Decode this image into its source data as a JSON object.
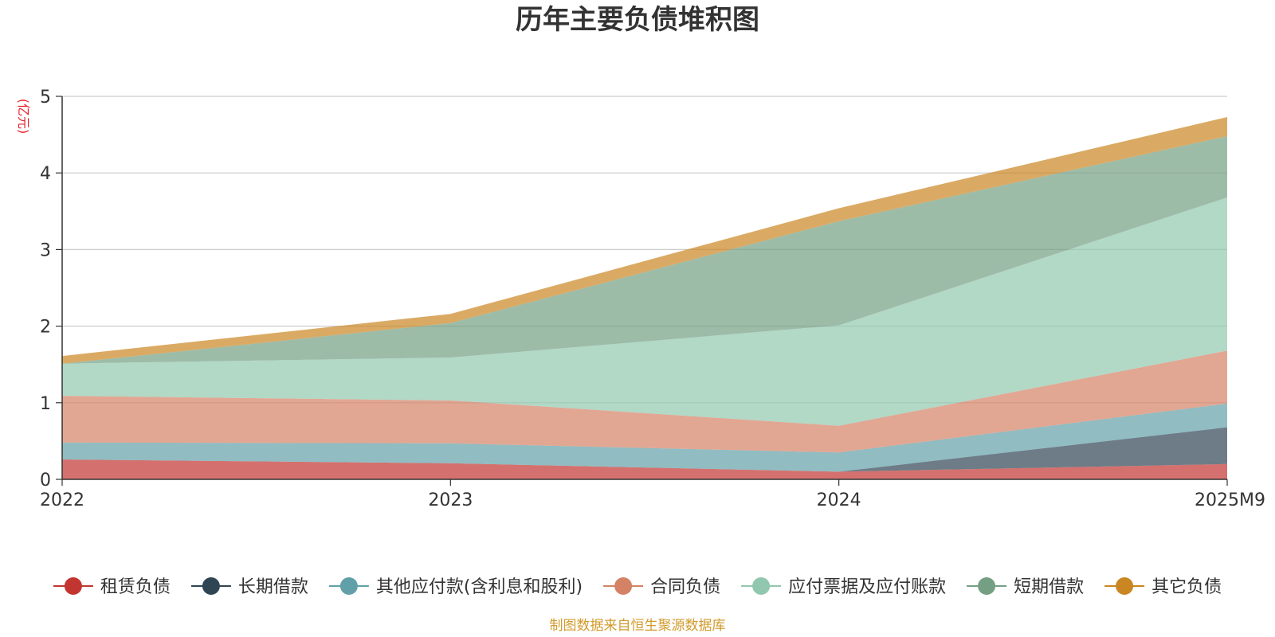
{
  "chart_data": {
    "type": "area",
    "stacked": true,
    "title": "历年主要负债堆积图",
    "unit_label": "(亿元)",
    "x": [
      "2022",
      "2023",
      "2024",
      "2025M9"
    ],
    "ylim": [
      0,
      5
    ],
    "yticks": [
      "0",
      "1",
      "2",
      "3",
      "4",
      "5"
    ],
    "grid": true,
    "legend_position": "bottom",
    "source": "制图数据来自恒生聚源数据库",
    "series": [
      {
        "name": "租赁负债",
        "values": [
          0.26,
          0.21,
          0.1,
          0.2
        ],
        "color": "#c23531"
      },
      {
        "name": "长期借款",
        "values": [
          0.0,
          0.0,
          0.0,
          0.48
        ],
        "color": "#2f4554"
      },
      {
        "name": "其他应付款(含利息和股利)",
        "values": [
          0.22,
          0.26,
          0.25,
          0.31
        ],
        "color": "#61a0a8"
      },
      {
        "name": "合同负债",
        "values": [
          0.61,
          0.56,
          0.35,
          0.69
        ],
        "color": "#d48265"
      },
      {
        "name": "应付票据及应付账款",
        "values": [
          0.42,
          0.56,
          1.31,
          2.0
        ],
        "color": "#91c7ae"
      },
      {
        "name": "短期借款",
        "values": [
          0.0,
          0.45,
          1.36,
          0.8
        ],
        "color": "#749f83"
      },
      {
        "name": "其它负债",
        "values": [
          0.1,
          0.12,
          0.17,
          0.25
        ],
        "color": "#ca8622"
      }
    ]
  }
}
